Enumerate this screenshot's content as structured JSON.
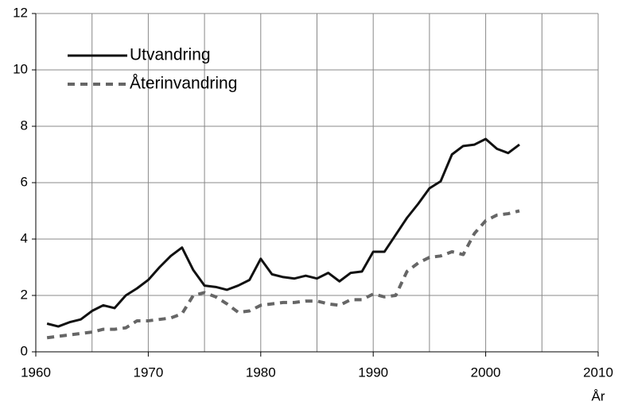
{
  "chart_data": {
    "type": "line",
    "x": [
      1961,
      1962,
      1963,
      1964,
      1965,
      1966,
      1967,
      1968,
      1969,
      1970,
      1971,
      1972,
      1973,
      1974,
      1975,
      1976,
      1977,
      1978,
      1979,
      1980,
      1981,
      1982,
      1983,
      1984,
      1985,
      1986,
      1987,
      1988,
      1989,
      1990,
      1991,
      1992,
      1993,
      1994,
      1995,
      1996,
      1997,
      1998,
      1999,
      2000,
      2001,
      2002,
      2003
    ],
    "series": [
      {
        "name": "Utvandring",
        "color": "#111111",
        "style": "solid",
        "values": [
          1.0,
          0.9,
          1.05,
          1.15,
          1.45,
          1.65,
          1.55,
          2.0,
          2.25,
          2.55,
          3.0,
          3.4,
          3.7,
          2.9,
          2.35,
          2.3,
          2.2,
          2.35,
          2.55,
          3.3,
          2.75,
          2.65,
          2.6,
          2.7,
          2.6,
          2.8,
          2.5,
          2.8,
          2.85,
          3.55,
          3.55,
          4.15,
          4.75,
          5.25,
          5.8,
          6.05,
          7.0,
          7.3,
          7.35,
          7.55,
          7.2,
          7.05,
          7.35
        ]
      },
      {
        "name": "Återinvandring",
        "color": "#666666",
        "style": "dashed",
        "values": [
          0.5,
          0.55,
          0.6,
          0.65,
          0.7,
          0.8,
          0.8,
          0.85,
          1.1,
          1.1,
          1.15,
          1.2,
          1.35,
          2.0,
          2.1,
          1.95,
          1.7,
          1.4,
          1.45,
          1.65,
          1.7,
          1.75,
          1.75,
          1.8,
          1.8,
          1.7,
          1.65,
          1.85,
          1.85,
          2.05,
          1.95,
          2.0,
          2.85,
          3.15,
          3.35,
          3.4,
          3.55,
          3.45,
          4.2,
          4.65,
          4.85,
          4.9,
          5.0
        ]
      }
    ],
    "x_label": "År",
    "xlim": [
      1960,
      2010
    ],
    "xticks": [
      1960,
      1970,
      1980,
      1990,
      2000,
      2010
    ],
    "xgrid": [
      1965,
      1975,
      1985,
      1995,
      2005
    ],
    "ylim": [
      0,
      12
    ],
    "yticks": [
      0,
      2,
      4,
      6,
      8,
      10,
      12
    ],
    "grid": true,
    "legend": "upper left"
  }
}
